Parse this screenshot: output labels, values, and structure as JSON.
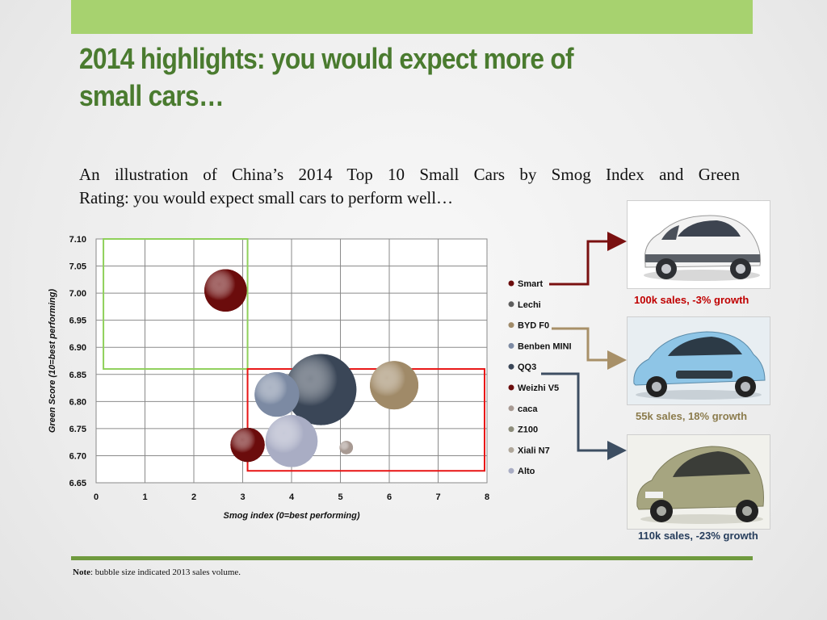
{
  "slide": {
    "title": "2014 highlights: you would expect more of small cars…",
    "subtitle_line1": "An illustration of China’s 2014 Top 10 Small Cars by Smog Index and Green",
    "subtitle_line2": "Rating: you would expect small cars to perform well…",
    "note_label": "Note",
    "note_text": ": bubble size indicated 2013 sales volume."
  },
  "cars": [
    {
      "caption": "100k sales, -3% growth",
      "caption_color": "#c00000",
      "body_color": "#f2f2f2",
      "bg": "#ffffff"
    },
    {
      "caption": "55k sales, 18% growth",
      "caption_color": "#8b7b4c",
      "body_color": "#8ec5e6",
      "bg": "#e8eef2"
    },
    {
      "caption": "110k sales, -23% growth",
      "caption_color": "#263d5c",
      "body_color": "#a6a580",
      "bg": "#f1f1ec"
    }
  ],
  "arrows": {
    "smart": "#7a1010",
    "byd": "#a89068",
    "qq3": "#3d4e62"
  },
  "chart_data": {
    "type": "scatter",
    "xlabel": "Smog index (0=best performing)",
    "ylabel": "Green Score (10=best performing)",
    "xlim": [
      0,
      8
    ],
    "ylim": [
      6.65,
      7.1
    ],
    "xticks": [
      "0",
      "1",
      "2",
      "3",
      "4",
      "5",
      "6",
      "7",
      "8"
    ],
    "yticks": [
      "6.65",
      "6.70",
      "6.75",
      "6.80",
      "6.85",
      "6.90",
      "6.95",
      "7.00",
      "7.05",
      "7.10"
    ],
    "grid": true,
    "legend_position": "right",
    "series": [
      {
        "name": "Smart",
        "x": 2.65,
        "y": 7.005,
        "size": 100,
        "color": "#6b0c0c"
      },
      {
        "name": "Lechi",
        "x": null,
        "y": null,
        "size": null,
        "color": "#5e5e5e"
      },
      {
        "name": "BYD F0",
        "x": 6.1,
        "y": 6.83,
        "size": 130,
        "color": "#a08a68"
      },
      {
        "name": "Benben MINI",
        "x": 3.7,
        "y": 6.813,
        "size": 110,
        "color": "#7c8aa3"
      },
      {
        "name": "QQ3",
        "x": 4.6,
        "y": 6.822,
        "size": 280,
        "color": "#3a4657"
      },
      {
        "name": "Weizhi V5",
        "x": 3.1,
        "y": 6.72,
        "size": 65,
        "color": "#6b0c0c"
      },
      {
        "name": "caca",
        "x": 5.12,
        "y": 6.715,
        "size": 10,
        "color": "#a89a93"
      },
      {
        "name": "Z100",
        "x": null,
        "y": null,
        "size": null,
        "color": "#8c8c7a"
      },
      {
        "name": "Xiali N7",
        "x": null,
        "y": null,
        "size": null,
        "color": "#b0a79a"
      },
      {
        "name": "Alto",
        "x": 4.0,
        "y": 6.727,
        "size": 150,
        "color": "#a9adc4"
      }
    ],
    "regions": [
      {
        "x0": 0.15,
        "x1": 3.1,
        "y0": 6.86,
        "y1": 7.1,
        "color": "#8fd05a"
      },
      {
        "x0": 3.1,
        "x1": 7.95,
        "y0": 6.672,
        "y1": 6.86,
        "color": "#e81414"
      }
    ]
  }
}
